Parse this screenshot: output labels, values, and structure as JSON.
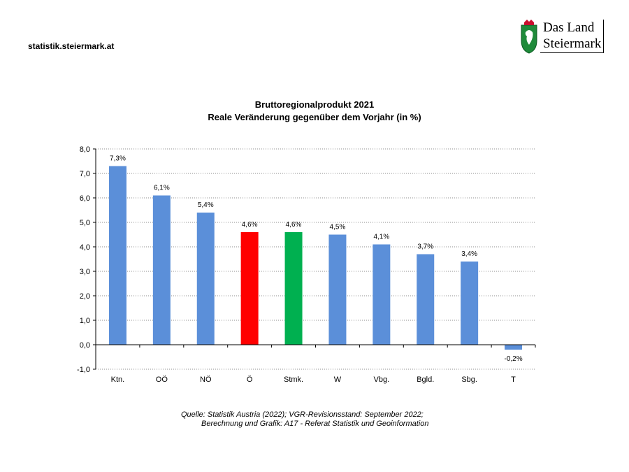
{
  "header": {
    "site": "statistik.steiermark.at",
    "logo_line1": "Das Land",
    "logo_line2": "Steiermark"
  },
  "footer": {
    "source_line1": "Quelle: Statistik Austria (2022); VGR-Revisionsstand: September 2022;",
    "source_line2": "Berechnung und Grafik: A17 - Referat Statistik und Geoinformation"
  },
  "chart_data": {
    "type": "bar",
    "title": "Bruttoregionalprodukt 2021",
    "subtitle": "Reale Veränderung gegenüber dem Vorjahr (in %)",
    "categories": [
      "Ktn.",
      "OÖ",
      "NÖ",
      "Ö",
      "Stmk.",
      "W",
      "Vbg.",
      "Bgld.",
      "Sbg.",
      "T"
    ],
    "values": [
      7.3,
      6.1,
      5.4,
      4.6,
      4.6,
      4.5,
      4.1,
      3.7,
      3.4,
      -0.2
    ],
    "data_labels": [
      "7,3%",
      "6,1%",
      "5,4%",
      "4,6%",
      "4,6%",
      "4,5%",
      "4,1%",
      "3,7%",
      "3,4%",
      "-0,2%"
    ],
    "colors": [
      "#5b8fd9",
      "#5b8fd9",
      "#5b8fd9",
      "#ff0000",
      "#00b050",
      "#5b8fd9",
      "#5b8fd9",
      "#5b8fd9",
      "#5b8fd9",
      "#5b8fd9"
    ],
    "yticks": [
      "-1,0",
      "0,0",
      "1,0",
      "2,0",
      "3,0",
      "4,0",
      "5,0",
      "6,0",
      "7,0",
      "8,0"
    ],
    "ylim": [
      -1,
      8
    ],
    "grid": true,
    "xlabel": "",
    "ylabel": ""
  }
}
